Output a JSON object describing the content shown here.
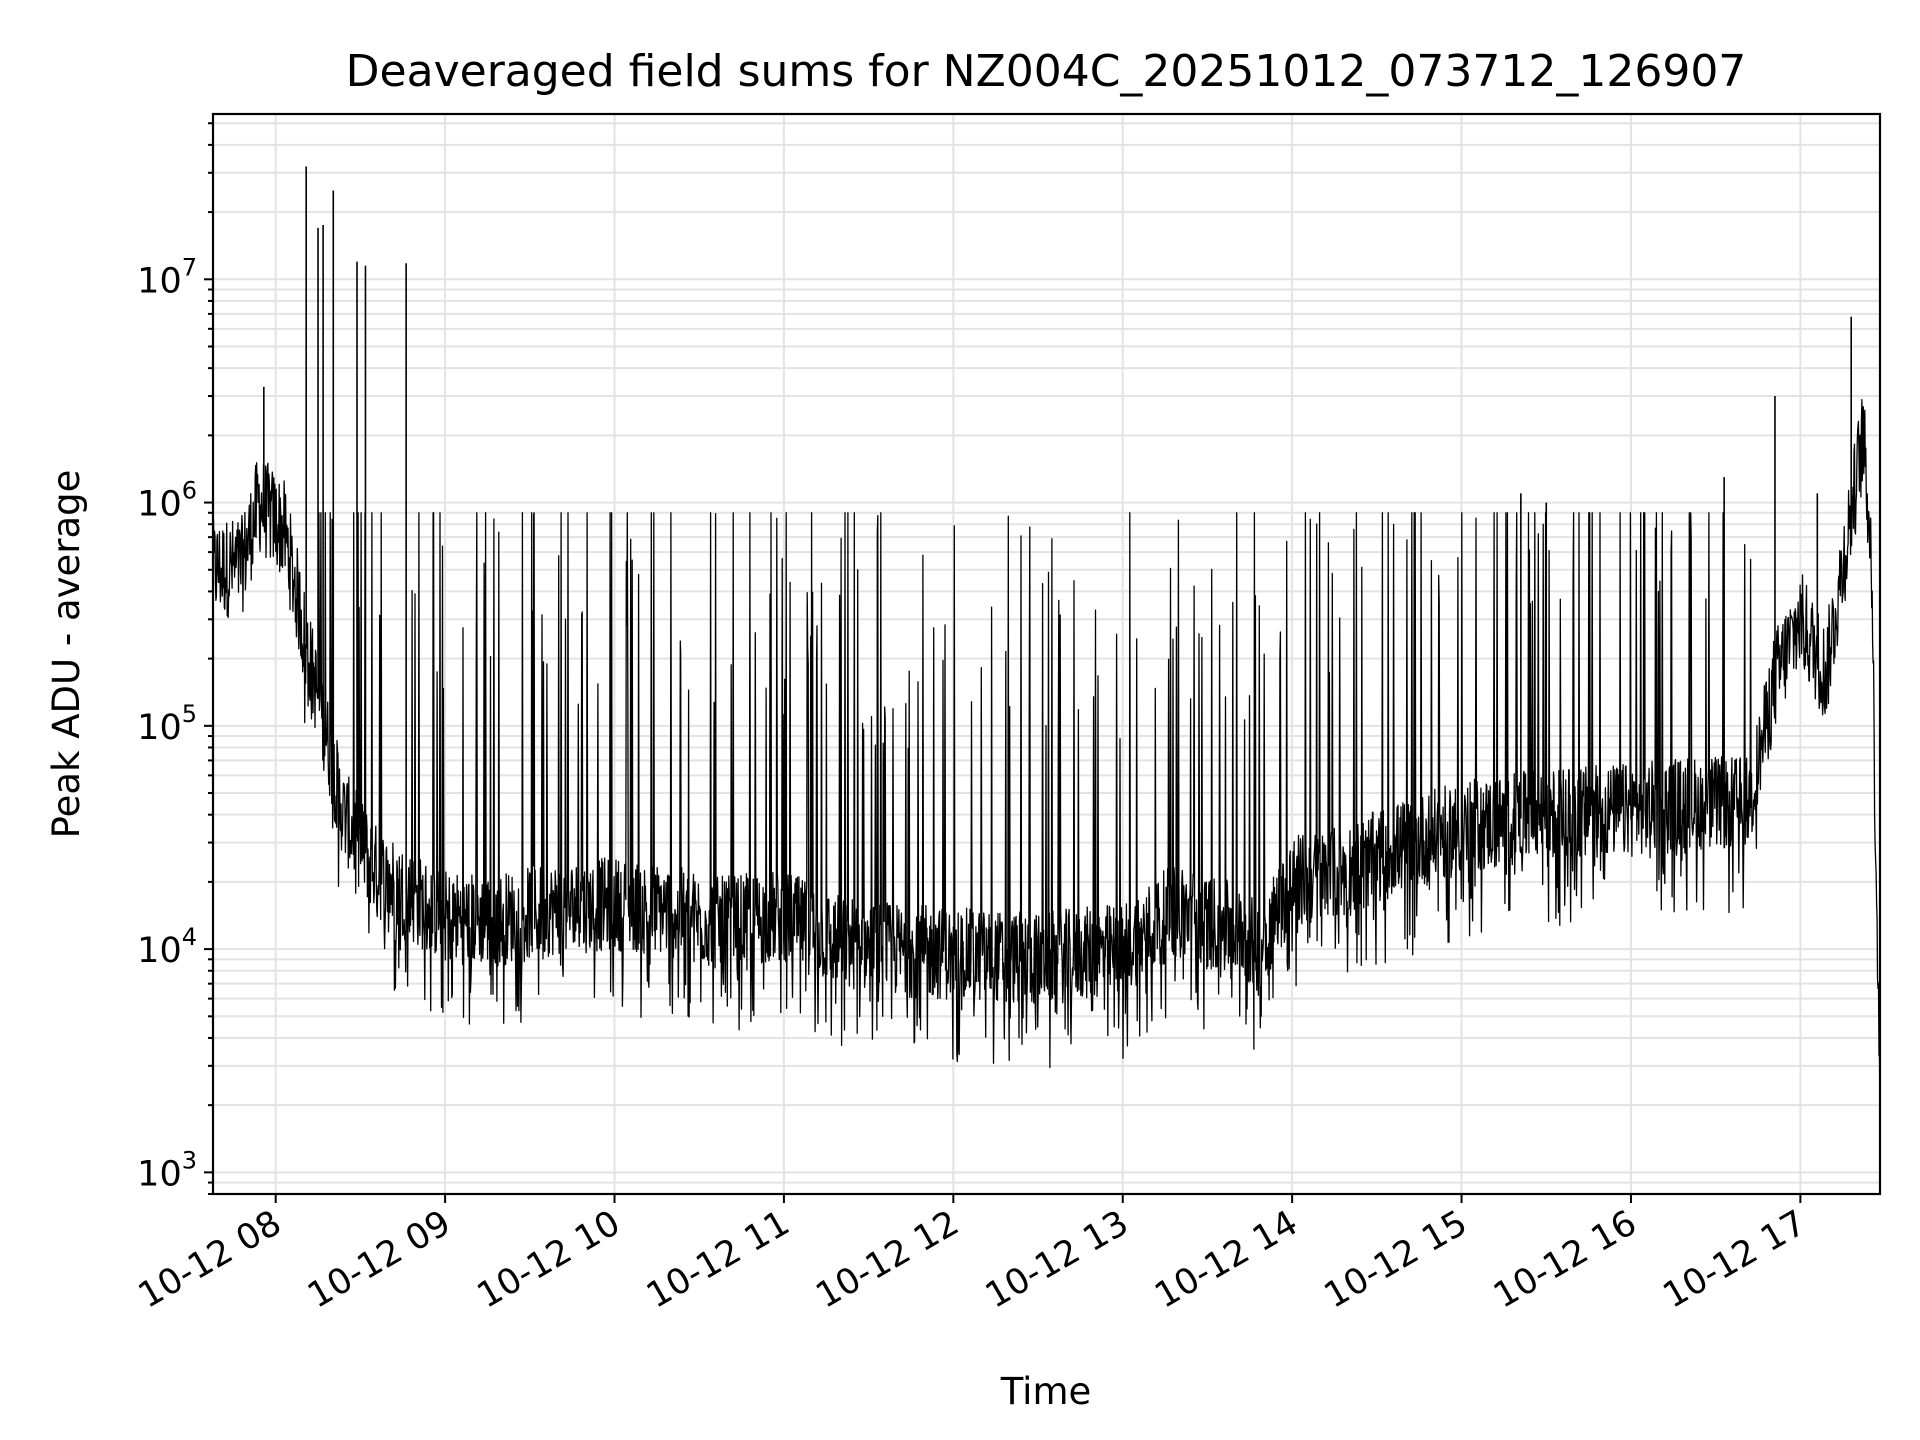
{
  "chart_data": {
    "type": "line",
    "title": "Deaveraged field sums for NZ004C_20251012_073712_126907",
    "xlabel": "Time",
    "ylabel": "Peak ADU - average",
    "x_range_hours": [
      7.63,
      17.47
    ],
    "yscale": "log",
    "ylim": [
      800,
      55000000
    ],
    "grid": "on",
    "x_ticks": [
      {
        "hour": 8,
        "label": "10-12 08"
      },
      {
        "hour": 9,
        "label": "10-12 09"
      },
      {
        "hour": 10,
        "label": "10-12 10"
      },
      {
        "hour": 11,
        "label": "10-12 11"
      },
      {
        "hour": 12,
        "label": "10-12 12"
      },
      {
        "hour": 13,
        "label": "10-12 13"
      },
      {
        "hour": 14,
        "label": "10-12 14"
      },
      {
        "hour": 15,
        "label": "10-12 15"
      },
      {
        "hour": 16,
        "label": "10-12 16"
      },
      {
        "hour": 17,
        "label": "10-12 17"
      }
    ],
    "y_ticks": [
      {
        "value": 1000,
        "base": "10",
        "exp": "3"
      },
      {
        "value": 10000,
        "base": "10",
        "exp": "4"
      },
      {
        "value": 100000,
        "base": "10",
        "exp": "5"
      },
      {
        "value": 1000000,
        "base": "10",
        "exp": "6"
      },
      {
        "value": 10000000,
        "base": "10",
        "exp": "7"
      }
    ],
    "series": [
      {
        "name": "Peak ADU - average",
        "baseline_points": [
          [
            7.63,
            500000
          ],
          [
            7.8,
            520000
          ],
          [
            7.9,
            1000000
          ],
          [
            8.05,
            750000
          ],
          [
            8.2,
            200000
          ],
          [
            8.4,
            40000
          ],
          [
            8.6,
            22000
          ],
          [
            8.8,
            17000
          ],
          [
            9.0,
            14000
          ],
          [
            9.3,
            13500
          ],
          [
            9.6,
            15000
          ],
          [
            10.0,
            16000
          ],
          [
            10.3,
            15000
          ],
          [
            10.6,
            13000
          ],
          [
            11.0,
            14000
          ],
          [
            11.3,
            11000
          ],
          [
            11.6,
            10000
          ],
          [
            12.0,
            9500
          ],
          [
            12.5,
            9000
          ],
          [
            13.0,
            10000
          ],
          [
            13.3,
            15000
          ],
          [
            13.7,
            12000
          ],
          [
            13.8,
            10000
          ],
          [
            14.0,
            20000
          ],
          [
            14.3,
            22000
          ],
          [
            14.6,
            28000
          ],
          [
            15.0,
            35000
          ],
          [
            15.5,
            40000
          ],
          [
            16.0,
            42000
          ],
          [
            16.3,
            45000
          ],
          [
            16.7,
            45000
          ],
          [
            16.85,
            160000
          ],
          [
            17.0,
            300000
          ],
          [
            17.15,
            170000
          ],
          [
            17.3,
            900000
          ],
          [
            17.37,
            2000000
          ],
          [
            17.42,
            600000
          ],
          [
            17.44,
            50000
          ],
          [
            17.47,
            2500
          ]
        ],
        "peaks": [
          {
            "hour": 8.18,
            "value": 32000000
          },
          {
            "hour": 8.25,
            "value": 17000000
          },
          {
            "hour": 8.28,
            "value": 17500000
          },
          {
            "hour": 8.34,
            "value": 25000000
          },
          {
            "hour": 8.48,
            "value": 12000000
          },
          {
            "hour": 8.53,
            "value": 11500000
          },
          {
            "hour": 8.77,
            "value": 11800000
          },
          {
            "hour": 7.93,
            "value": 3300000
          },
          {
            "hour": 16.85,
            "value": 3000000
          },
          {
            "hour": 17.3,
            "value": 6800000
          },
          {
            "hour": 15.35,
            "value": 1100000
          },
          {
            "hour": 15.5,
            "value": 1000000
          },
          {
            "hour": 16.55,
            "value": 1300000
          },
          {
            "hour": 17.1,
            "value": 1100000
          }
        ]
      }
    ]
  }
}
